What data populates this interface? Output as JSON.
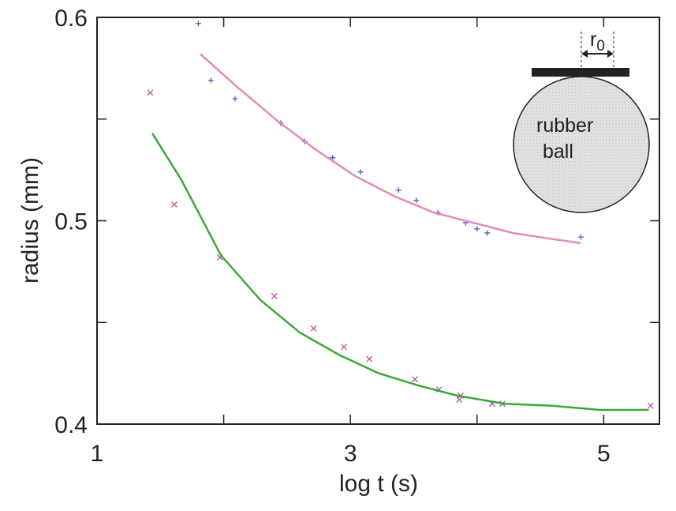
{
  "chart_data": {
    "type": "scatter",
    "x_label": "log t (s)",
    "y_label": "radius (mm)",
    "xlim": [
      1,
      5.44
    ],
    "ylim": [
      0.4,
      0.6
    ],
    "xticks": [
      1,
      3,
      5
    ],
    "xminorticks": [
      2,
      4
    ],
    "yticks": [
      0.4,
      0.5,
      0.6
    ],
    "yminorticks": [
      0.45,
      0.55
    ],
    "series": [
      {
        "mode": "points",
        "marker": "+",
        "color": "#4a5cc4",
        "x": [
          1.8,
          1.9,
          2.09,
          2.45,
          2.64,
          2.86,
          3.08,
          3.38,
          3.52,
          3.69,
          3.91,
          4.0,
          4.08,
          4.82
        ],
        "values": [
          0.597,
          0.569,
          0.56,
          0.548,
          0.539,
          0.531,
          0.524,
          0.515,
          0.51,
          0.504,
          0.499,
          0.496,
          0.494,
          0.492
        ]
      },
      {
        "mode": "points",
        "marker": "x",
        "color": "#c04a9c",
        "x": [
          1.42,
          1.61,
          1.97,
          2.4,
          2.71,
          2.95,
          3.15,
          3.51,
          3.7,
          3.87,
          3.86,
          4.12,
          4.2,
          5.37
        ],
        "values": [
          0.563,
          0.508,
          0.482,
          0.463,
          0.447,
          0.438,
          0.432,
          0.422,
          0.417,
          0.414,
          0.412,
          0.41,
          0.41,
          0.409
        ]
      },
      {
        "mode": "line",
        "color": "#e48ab4",
        "x": [
          1.816,
          2.103,
          2.446,
          2.726,
          3.037,
          3.349,
          3.66,
          3.972,
          4.283,
          4.595,
          4.819
        ],
        "values": [
          0.582,
          0.566,
          0.548,
          0.535,
          0.522,
          0.512,
          0.504,
          0.499,
          0.494,
          0.491,
          0.489
        ]
      },
      {
        "mode": "line",
        "color": "#3aa83a",
        "x": [
          1.436,
          1.667,
          1.978,
          2.29,
          2.601,
          2.913,
          3.224,
          3.536,
          3.847,
          4.221,
          4.595,
          4.969,
          5.355
        ],
        "values": [
          0.543,
          0.52,
          0.483,
          0.461,
          0.445,
          0.434,
          0.425,
          0.419,
          0.414,
          0.41,
          0.409,
          0.407,
          0.407
        ]
      }
    ],
    "inset": {
      "ball_line1": "rubber",
      "ball_line2": "ball",
      "radius_symbol": "r",
      "radius_subscript": "0"
    }
  }
}
